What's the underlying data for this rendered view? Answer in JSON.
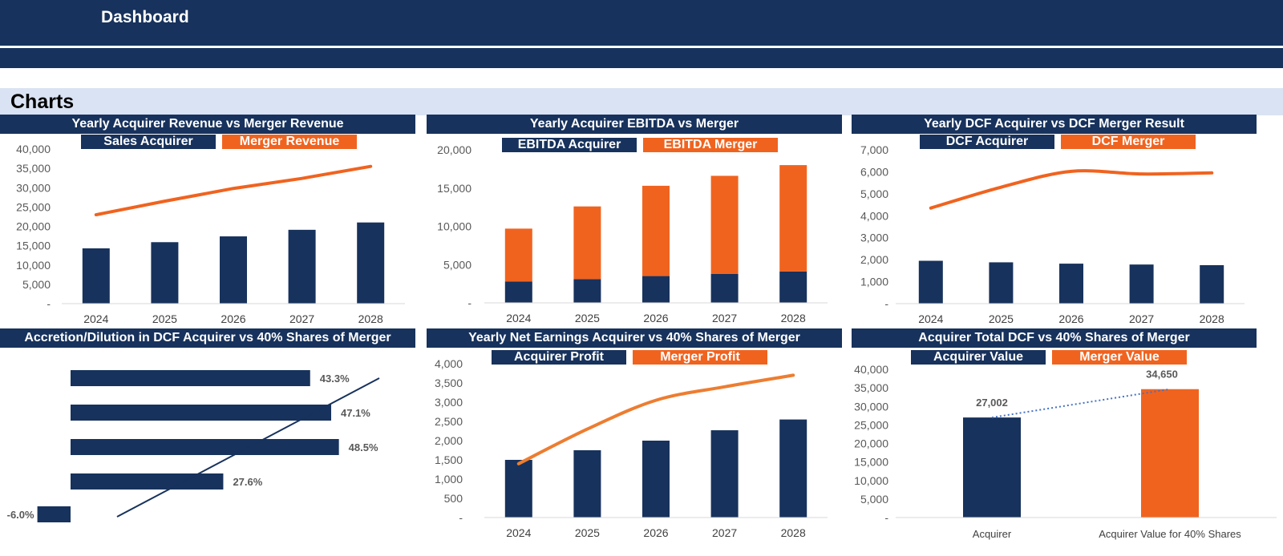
{
  "header": {
    "title": "Dashboard"
  },
  "section": {
    "title": "Charts"
  },
  "colors": {
    "navy": "#17325c",
    "orange": "#f0631f",
    "section_bg": "#dae3f3",
    "axis_text": "#595959"
  },
  "chart_data": [
    {
      "id": "revenue",
      "type": "bar+line",
      "title": "Yearly Acquirer Revenue vs Merger Revenue",
      "categories": [
        "2024",
        "2025",
        "2026",
        "2027",
        "2028"
      ],
      "series": [
        {
          "name": "Sales Acquirer",
          "kind": "bar",
          "color": "#17325c",
          "values": [
            14300,
            15900,
            17400,
            19100,
            21000
          ]
        },
        {
          "name": "Merger Revenue",
          "kind": "line",
          "color": "#f0631f",
          "values": [
            23000,
            26500,
            29800,
            32400,
            35500
          ]
        }
      ],
      "ylim": [
        0,
        40000
      ],
      "yticks": [
        "-",
        "5,000",
        "10,000",
        "15,000",
        "20,000",
        "25,000",
        "30,000",
        "35,000",
        "40,000"
      ]
    },
    {
      "id": "ebitda",
      "type": "stacked-bar",
      "title": "Yearly Acquirer EBITDA vs Merger",
      "categories": [
        "2024",
        "2025",
        "2026",
        "2027",
        "2028"
      ],
      "series": [
        {
          "name": "EBITDA Acquirer",
          "color": "#17325c",
          "values": [
            2800,
            3100,
            3500,
            3800,
            4100
          ]
        },
        {
          "name": "EBITDA Merger",
          "color": "#f0631f",
          "values": [
            6900,
            9500,
            11800,
            12800,
            13900
          ]
        }
      ],
      "ylim": [
        0,
        20000
      ],
      "yticks": [
        "-",
        "5,000",
        "10,000",
        "15,000",
        "20,000"
      ]
    },
    {
      "id": "dcf",
      "type": "bar+line",
      "title": "Yearly DCF Acquirer vs DCF Merger Result",
      "categories": [
        "2024",
        "2025",
        "2026",
        "2027",
        "2028"
      ],
      "series": [
        {
          "name": "DCF Acquirer",
          "kind": "bar",
          "color": "#17325c",
          "values": [
            1950,
            1880,
            1820,
            1780,
            1750
          ]
        },
        {
          "name": "DCF Merger",
          "kind": "line",
          "color": "#f0631f",
          "values": [
            4350,
            5300,
            6020,
            5900,
            5950
          ]
        }
      ],
      "ylim": [
        0,
        7000
      ],
      "yticks": [
        "-",
        "1,000",
        "2,000",
        "3,000",
        "4,000",
        "5,000",
        "6,000",
        "7,000"
      ]
    },
    {
      "id": "accretion",
      "type": "horizontal-bar",
      "title": "Accretion/Dilution in DCF Acquirer vs 40% Shares of Merger",
      "values": [
        43.3,
        47.1,
        48.5,
        27.6,
        -6.0
      ],
      "labels": [
        "43.3%",
        "47.1%",
        "48.5%",
        "27.6%",
        "-6.0%"
      ],
      "xlim": [
        -6.0,
        48.5
      ]
    },
    {
      "id": "earnings",
      "type": "bar+line",
      "title": "Yearly Net Earnings Acquirer vs 40% Shares of Merger",
      "categories": [
        "2024",
        "2025",
        "2026",
        "2027",
        "2028"
      ],
      "series": [
        {
          "name": "Acquirer Profit",
          "kind": "bar",
          "color": "#17325c",
          "values": [
            1500,
            1750,
            2000,
            2270,
            2550
          ]
        },
        {
          "name": "Merger Profit",
          "kind": "line",
          "color": "#ed7d31",
          "values": [
            1400,
            2300,
            3050,
            3400,
            3700
          ]
        }
      ],
      "ylim": [
        0,
        4000
      ],
      "yticks": [
        "-",
        "500",
        "1,000",
        "1,500",
        "2,000",
        "2,500",
        "3,000",
        "3,500",
        "4,000"
      ]
    },
    {
      "id": "totaldcf",
      "type": "bar",
      "title": "Acquirer Total DCF vs 40% Shares of Merger",
      "categories": [
        "Acquirer",
        "Acquirer Value for 40% Shares"
      ],
      "values": [
        27002,
        34650
      ],
      "value_labels": [
        "27,002",
        "34,650"
      ],
      "series_names": [
        "Acquirer Value",
        "Merger Value"
      ],
      "ylim": [
        0,
        40000
      ],
      "yticks": [
        "-",
        "5,000",
        "10,000",
        "15,000",
        "20,000",
        "25,000",
        "30,000",
        "35,000",
        "40,000"
      ]
    }
  ]
}
